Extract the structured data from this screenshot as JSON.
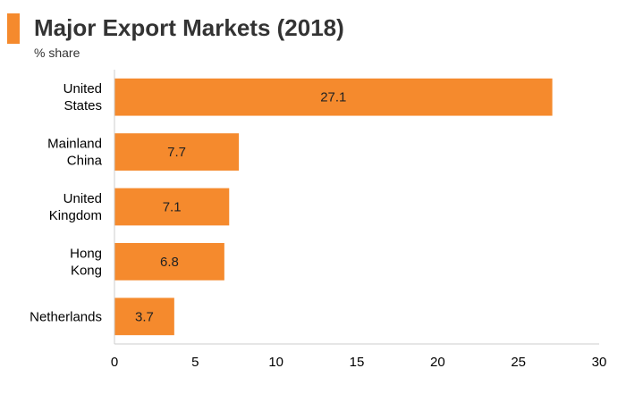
{
  "header": {
    "title": "Major Export Markets (2018)",
    "subtitle": "% share",
    "accent_color": "#f58a2d"
  },
  "chart_data": {
    "type": "bar",
    "orientation": "horizontal",
    "title": "Major Export Markets (2018)",
    "subtitle": "% share",
    "categories": [
      [
        "United",
        "States"
      ],
      [
        "Mainland",
        "China"
      ],
      [
        "United",
        "Kingdom"
      ],
      [
        "Hong",
        "Kong"
      ],
      [
        "Netherlands"
      ]
    ],
    "values": [
      27.1,
      7.7,
      7.1,
      6.8,
      3.7
    ],
    "value_labels": [
      "27.1",
      "7.7",
      "7.1",
      "6.8",
      "3.7"
    ],
    "xlim": [
      0,
      30
    ],
    "xticks": [
      0,
      5,
      10,
      15,
      20,
      25,
      30
    ],
    "bar_color": "#f58a2d",
    "grid": false,
    "legend": "none"
  }
}
